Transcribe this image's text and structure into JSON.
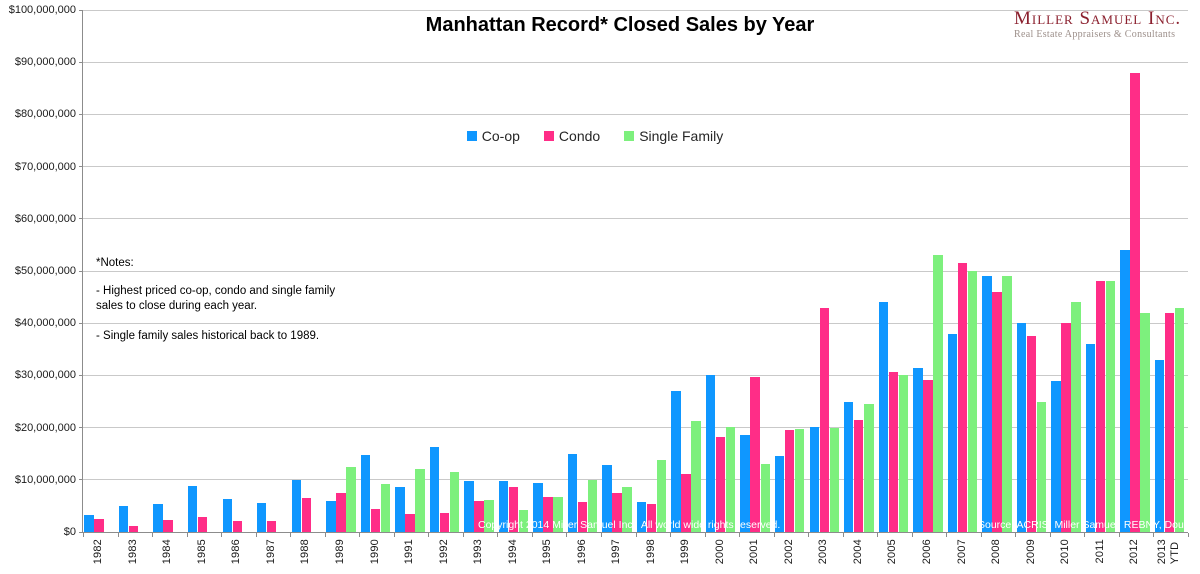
{
  "header": {
    "title": "Manhattan Record* Closed Sales by Year",
    "logo": {
      "name": "Miller Samuel Inc.",
      "tagline": "Real Estate Appraisers & Consultants",
      "name_color": "#8b202e",
      "tagline_color": "#9c8f8a"
    }
  },
  "legend": [
    {
      "label": "Co-op",
      "color": "#0f97ff"
    },
    {
      "label": "Condo",
      "color": "#ff2d87"
    },
    {
      "label": "Single Family",
      "color": "#7df07d"
    }
  ],
  "notes": {
    "title": "*Notes:",
    "items": [
      "- Highest priced co-op, condo and single family sales to close during each year.",
      "- Single family sales historical back to 1989."
    ]
  },
  "footer": {
    "copyright": "Copyright 2014 Miller Samuel Inc.  All world wide rights reserved.",
    "source": "Source: ACRIS, Miller Samuel, REBNY, Douglas Elliman"
  },
  "chart_data": {
    "type": "bar",
    "title": "Manhattan Record* Closed Sales by Year",
    "xlabel": "",
    "ylabel": "",
    "ylim": [
      0,
      100000000
    ],
    "ytick_interval": 10000000,
    "ytick_labels": [
      "$0",
      "$10,000,000",
      "$20,000,000",
      "$30,000,000",
      "$40,000,000",
      "$50,000,000",
      "$60,000,000",
      "$70,000,000",
      "$80,000,000",
      "$90,000,000",
      "$100,000,000"
    ],
    "grid": true,
    "legend_position": "top-center",
    "categories": [
      "1982",
      "1983",
      "1984",
      "1985",
      "1986",
      "1987",
      "1988",
      "1989",
      "1990",
      "1991",
      "1992",
      "1993",
      "1994",
      "1995",
      "1996",
      "1997",
      "1998",
      "1999",
      "2000",
      "2001",
      "2002",
      "2003",
      "2004",
      "2005",
      "2006",
      "2007",
      "2008",
      "2009",
      "2010",
      "2011",
      "2012",
      "2013 YTD"
    ],
    "series": [
      {
        "name": "Co-op",
        "color": "#0f97ff",
        "values": [
          3300000,
          5000000,
          5400000,
          8800000,
          6400000,
          5500000,
          10000000,
          6000000,
          14700000,
          8600000,
          16200000,
          9800000,
          9800000,
          9300000,
          15000000,
          12800000,
          5800000,
          27000000,
          30000000,
          18500000,
          14600000,
          20200000,
          25000000,
          44000000,
          31500000,
          38000000,
          49000000,
          40000000,
          29000000,
          36000000,
          54000000,
          33000000
        ]
      },
      {
        "name": "Condo",
        "color": "#ff2d87",
        "values": [
          2500000,
          1100000,
          2300000,
          2900000,
          2100000,
          2100000,
          6500000,
          7500000,
          4500000,
          3400000,
          3600000,
          5900000,
          8700000,
          6700000,
          5700000,
          7400000,
          5300000,
          11200000,
          18200000,
          29600000,
          19600000,
          43000000,
          21400000,
          30600000,
          29200000,
          51500000,
          46000000,
          37500000,
          40000000,
          48000000,
          88000000,
          42000000
        ]
      },
      {
        "name": "Single Family",
        "color": "#7df07d",
        "values": [
          null,
          null,
          null,
          null,
          null,
          null,
          null,
          12400000,
          9100000,
          12000000,
          11400000,
          6200000,
          4200000,
          6800000,
          10000000,
          8700000,
          13700000,
          21200000,
          20200000,
          13000000,
          19800000,
          20000000,
          24600000,
          30000000,
          53000000,
          50000000,
          49000000,
          25000000,
          44000000,
          48000000,
          42000000,
          43000000
        ]
      }
    ]
  }
}
